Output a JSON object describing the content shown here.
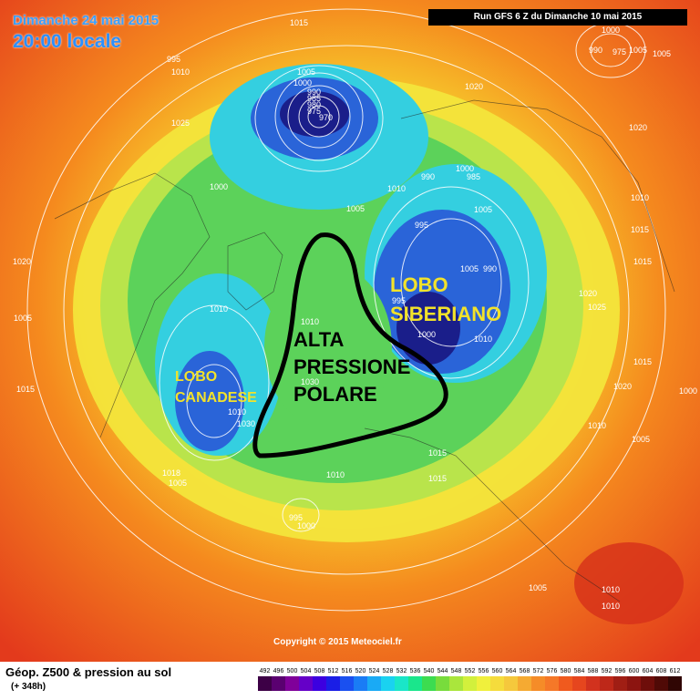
{
  "header": {
    "date": "Dimanche 24 mai 2015",
    "time": "20:00 locale",
    "run": "Run GFS 6 Z du Dimanche 10 mai 2015"
  },
  "map": {
    "colors": {
      "outer": "#e8371a",
      "orange": "#f7a11a",
      "yellow": "#f3e53b",
      "lime": "#b9e44b",
      "green": "#5cd25a",
      "cyan": "#34cfe0",
      "blue": "#2a64d8",
      "navy": "#1a1e8a",
      "outline": "#000000",
      "label_yellow": "#f2e22a"
    },
    "isobar_labels": [
      "1015",
      "1005",
      "1000",
      "990",
      "985",
      "980",
      "975",
      "970",
      "1020",
      "1025",
      "1010",
      "995",
      "1000",
      "1005",
      "1010",
      "1005",
      "1010",
      "1030",
      "1030",
      "1010",
      "1015",
      "1020",
      "1005",
      "990",
      "995",
      "1000",
      "1010",
      "1005",
      "1000",
      "985",
      "990",
      "995",
      "1000",
      "990",
      "975",
      "1005",
      "1015",
      "1020",
      "1025",
      "1020",
      "1015",
      "1010",
      "1005",
      "1015",
      "1010",
      "1000",
      "1020",
      "1005",
      "1015",
      "1018",
      "1005",
      "1015",
      "1000",
      "995",
      "1010",
      "1010",
      "1005",
      "1010",
      "1010"
    ],
    "region_labels": [
      {
        "text": "LOBO",
        "color": "#f2e22a"
      },
      {
        "text": "SIBERIANO",
        "color": "#f2e22a"
      },
      {
        "text": "ALTA",
        "color": "#000000"
      },
      {
        "text": "PRESSIONE",
        "color": "#000000"
      },
      {
        "text": "POLARE",
        "color": "#000000"
      },
      {
        "text": "LOBO",
        "color": "#f2e22a"
      },
      {
        "text": "CANADESE",
        "color": "#f2e22a"
      }
    ],
    "copyright": "Copyright © 2015 Meteociel.fr"
  },
  "legend": {
    "title": "Géop. Z500 & pression au sol",
    "subtitle": "(+ 348h)",
    "values": [
      "492",
      "496",
      "500",
      "504",
      "508",
      "512",
      "516",
      "520",
      "524",
      "528",
      "532",
      "536",
      "540",
      "544",
      "548",
      "552",
      "556",
      "560",
      "564",
      "568",
      "572",
      "576",
      "580",
      "584",
      "588",
      "592",
      "596",
      "600",
      "604",
      "608",
      "612"
    ],
    "colors": [
      "#3d0046",
      "#5a0070",
      "#80009a",
      "#6500c8",
      "#3c00e0",
      "#1a1ee6",
      "#1a50f0",
      "#1a7cf5",
      "#1aaaf5",
      "#1ad2f0",
      "#1ae6c8",
      "#1ae68c",
      "#3cdc50",
      "#78dc3c",
      "#aae63c",
      "#d2f03c",
      "#f0f03c",
      "#f5dc3c",
      "#f5c83c",
      "#f5aa32",
      "#f58c28",
      "#f57828",
      "#f05a1e",
      "#e6461e",
      "#d2321e",
      "#be2819",
      "#a01e14",
      "#8c1410",
      "#6e0e0a",
      "#500a06",
      "#300604"
    ]
  }
}
